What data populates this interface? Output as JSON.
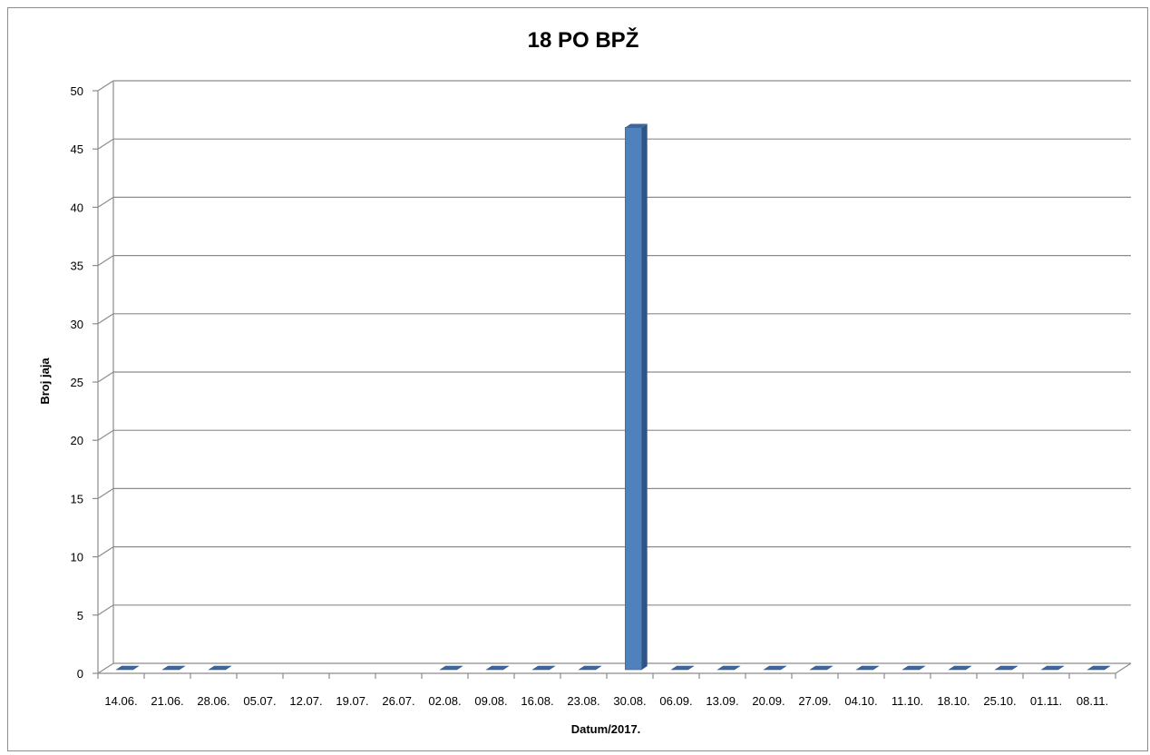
{
  "chart_data": {
    "type": "bar",
    "title": "18 PO BPŽ",
    "xlabel": "Datum/2017.",
    "ylabel": "Broj jaja",
    "ylim": [
      0,
      50
    ],
    "yticks": [
      0,
      5,
      10,
      15,
      20,
      25,
      30,
      35,
      40,
      45,
      50
    ],
    "grid": true,
    "legend": "none",
    "bar_color": "#4f81bd",
    "categories": [
      "14.06.",
      "21.06.",
      "28.06.",
      "05.07.",
      "12.07.",
      "19.07.",
      "26.07.",
      "02.08.",
      "09.08.",
      "16.08.",
      "23.08.",
      "30.08.",
      "06.09.",
      "13.09.",
      "20.09.",
      "27.09.",
      "04.10.",
      "11.10.",
      "18.10.",
      "25.10.",
      "01.11.",
      "08.11."
    ],
    "values": [
      0,
      0,
      0,
      null,
      null,
      null,
      null,
      0,
      0,
      0,
      0,
      47,
      0,
      0,
      0,
      0,
      0,
      0,
      0,
      0,
      0,
      0
    ]
  }
}
